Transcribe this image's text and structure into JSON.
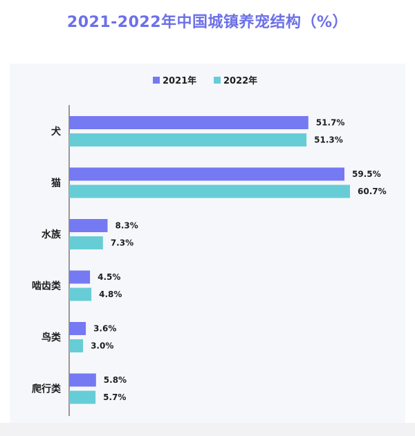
{
  "chart_data": {
    "type": "bar",
    "orientation": "horizontal",
    "title": "2021-2022年中国城镇养宠结构（%）",
    "categories": [
      "犬",
      "猫",
      "水族",
      "啮齿类",
      "鸟类",
      "爬行类"
    ],
    "series": [
      {
        "name": "2021年",
        "color": "#7579f2",
        "values": [
          51.7,
          59.5,
          8.3,
          4.5,
          3.6,
          5.8
        ]
      },
      {
        "name": "2022年",
        "color": "#66cdd6",
        "values": [
          51.3,
          60.7,
          7.3,
          4.8,
          3.0,
          5.7
        ]
      }
    ],
    "value_suffix": "%",
    "legend_position": "top",
    "xlim": [
      0,
      60.7
    ],
    "grid": false
  }
}
